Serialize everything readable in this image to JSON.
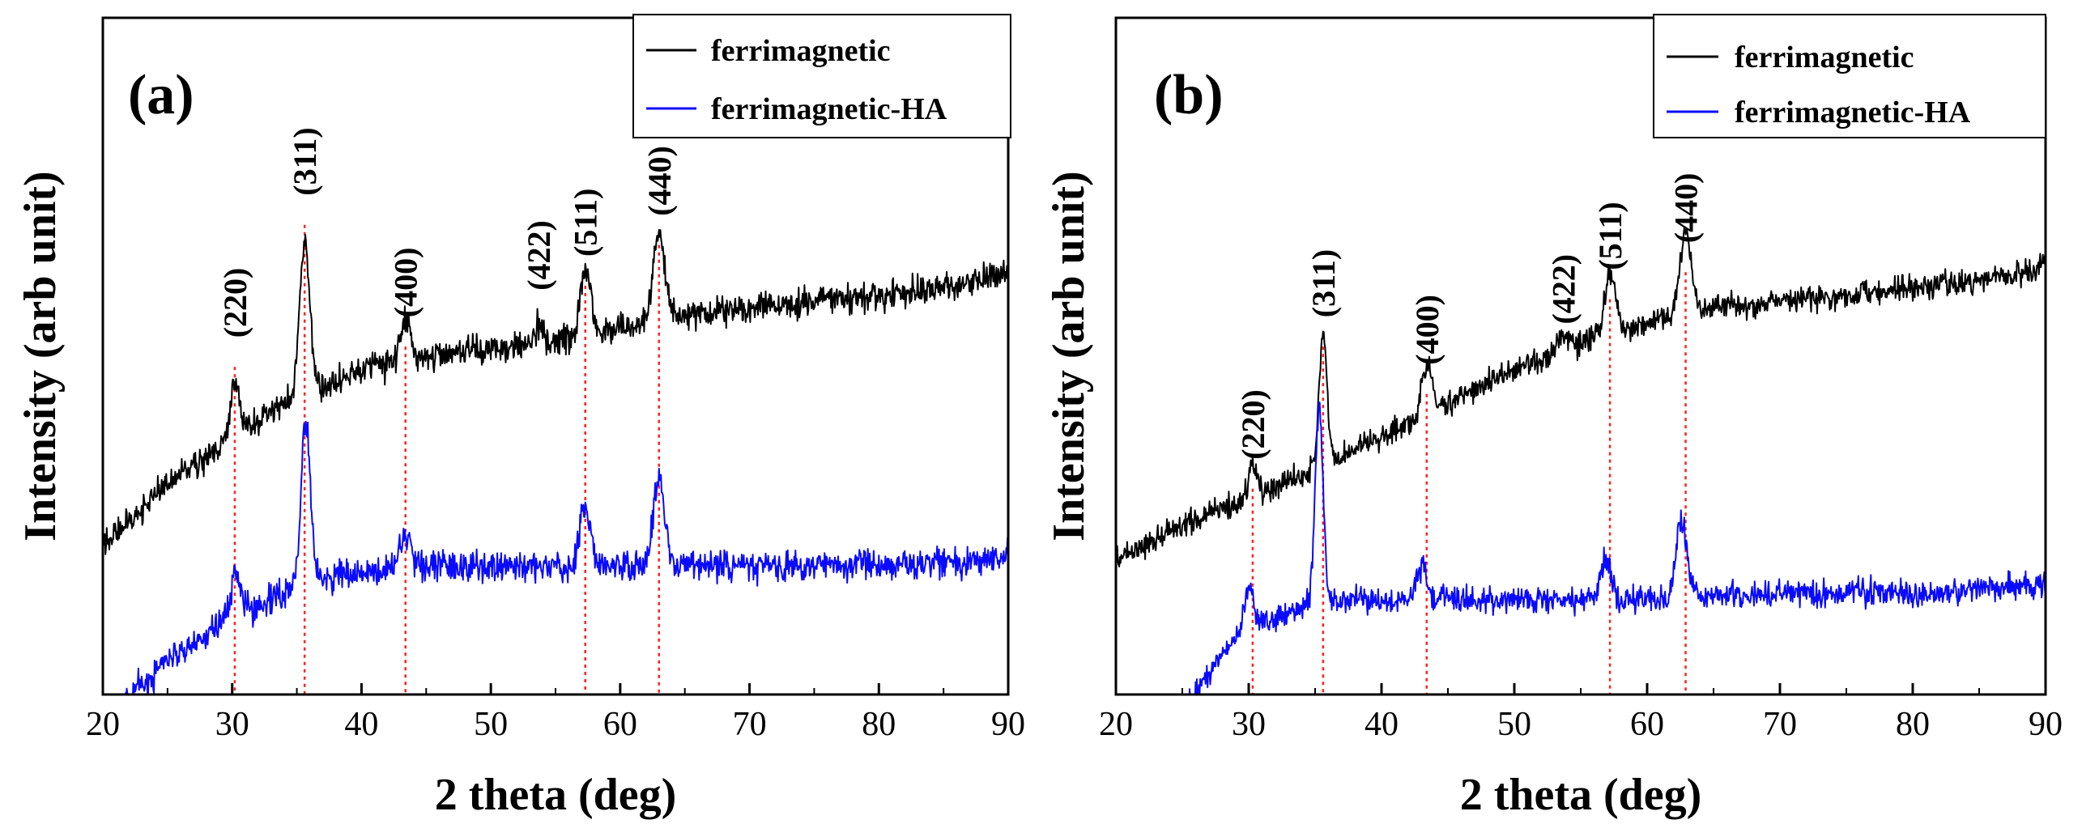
{
  "chart_data": [
    {
      "type": "line",
      "panel_label": "(a)",
      "xlabel": "2 theta (deg)",
      "ylabel": "Intensity (arb unit)",
      "xlim": [
        20,
        90
      ],
      "ylim": [
        0,
        100
      ],
      "x_ticks": [
        "20",
        "30",
        "40",
        "50",
        "60",
        "70",
        "80",
        "90"
      ],
      "peaks": [
        {
          "label": "(220)",
          "x": 30.2,
          "peak": 52
        },
        {
          "label": "(311)",
          "x": 35.6,
          "peak": 73
        },
        {
          "label": "(400)",
          "x": 43.4,
          "peak": 55
        },
        {
          "label": "(422)",
          "x": 53.7,
          "peak": 59
        },
        {
          "label": "(511)",
          "x": 57.3,
          "peak": 64
        },
        {
          "label": "(440)",
          "x": 63.0,
          "peak": 70
        }
      ],
      "series": [
        {
          "name": "ferrimagnetic",
          "color": "#000000",
          "baseline": [
            [
              20,
              22
            ],
            [
              25,
              31
            ],
            [
              30,
              38
            ],
            [
              35,
              44
            ],
            [
              40,
              48
            ],
            [
              45,
              50
            ],
            [
              50,
              51
            ],
            [
              55,
              52
            ],
            [
              60,
              54
            ],
            [
              65,
              56
            ],
            [
              70,
              57
            ],
            [
              75,
              58
            ],
            [
              80,
              59
            ],
            [
              85,
              60
            ],
            [
              90,
              62
            ]
          ],
          "noise": 1.6,
          "peaks": [
            [
              30.2,
              8,
              0.35
            ],
            [
              35.6,
              22,
              0.4
            ],
            [
              43.4,
              6,
              0.4
            ],
            [
              53.7,
              3,
              0.4
            ],
            [
              57.3,
              10,
              0.4
            ],
            [
              63.0,
              13,
              0.45
            ]
          ]
        },
        {
          "name": "ferrimagnetic-HA",
          "color": "#0a0aff",
          "baseline": [
            [
              20,
              -6
            ],
            [
              22,
              0
            ],
            [
              25,
              5
            ],
            [
              28,
              9
            ],
            [
              30,
              12
            ],
            [
              33,
              14
            ],
            [
              35,
              16
            ],
            [
              40,
              18
            ],
            [
              45,
              19
            ],
            [
              50,
              19
            ],
            [
              60,
              19
            ],
            [
              70,
              19
            ],
            [
              80,
              19
            ],
            [
              90,
              20
            ]
          ],
          "noise": 1.7,
          "peaks": [
            [
              30.3,
              6,
              0.35
            ],
            [
              35.7,
              25,
              0.35
            ],
            [
              43.4,
              5,
              0.45
            ],
            [
              57.3,
              9,
              0.4
            ],
            [
              63.0,
              13,
              0.45
            ]
          ]
        }
      ]
    },
    {
      "type": "line",
      "panel_label": "(b)",
      "xlabel": "2 theta (deg)",
      "ylabel": "Intensity (arb unit)",
      "xlim": [
        20,
        90
      ],
      "ylim": [
        0,
        100
      ],
      "x_ticks": [
        "20",
        "30",
        "40",
        "50",
        "60",
        "70",
        "80",
        "90"
      ],
      "peaks": [
        {
          "label": "(220)",
          "x": 30.3,
          "peak": 34
        },
        {
          "label": "(311)",
          "x": 35.6,
          "peak": 55
        },
        {
          "label": "(400)",
          "x": 43.4,
          "peak": 48
        },
        {
          "label": "(422)",
          "x": 53.7,
          "peak": 54
        },
        {
          "label": "(511)",
          "x": 57.2,
          "peak": 62
        },
        {
          "label": "(440)",
          "x": 62.9,
          "peak": 66
        }
      ],
      "series": [
        {
          "name": "ferrimagnetic",
          "color": "#000000",
          "baseline": [
            [
              20,
              20
            ],
            [
              25,
              25
            ],
            [
              30,
              29
            ],
            [
              35,
              33
            ],
            [
              40,
              38
            ],
            [
              45,
              43
            ],
            [
              50,
              48
            ],
            [
              55,
              52
            ],
            [
              60,
              55
            ],
            [
              65,
              57
            ],
            [
              70,
              58
            ],
            [
              75,
              59
            ],
            [
              80,
              60
            ],
            [
              85,
              61
            ],
            [
              90,
              63
            ]
          ],
          "noise": 1.4,
          "peaks": [
            [
              30.3,
              5,
              0.3
            ],
            [
              35.6,
              20,
              0.3
            ],
            [
              43.4,
              7,
              0.4
            ],
            [
              53.7,
              2,
              0.4
            ],
            [
              57.2,
              9,
              0.4
            ],
            [
              62.9,
              12,
              0.45
            ]
          ]
        },
        {
          "name": "ferrimagnetic-HA",
          "color": "#0a0aff",
          "baseline": [
            [
              25.2,
              -2
            ],
            [
              27,
              3
            ],
            [
              29,
              8
            ],
            [
              31,
              10
            ],
            [
              33,
              12
            ],
            [
              35,
              14
            ],
            [
              40,
              14
            ],
            [
              45,
              14
            ],
            [
              50,
              14
            ],
            [
              60,
              14
            ],
            [
              70,
              15
            ],
            [
              80,
              15
            ],
            [
              90,
              16
            ]
          ],
          "noise": 1.5,
          "peaks": [
            [
              30.0,
              7,
              0.35
            ],
            [
              35.3,
              28,
              0.3
            ],
            [
              43.0,
              5,
              0.4
            ],
            [
              56.9,
              6,
              0.4
            ],
            [
              62.6,
              12,
              0.4
            ]
          ]
        }
      ]
    }
  ]
}
